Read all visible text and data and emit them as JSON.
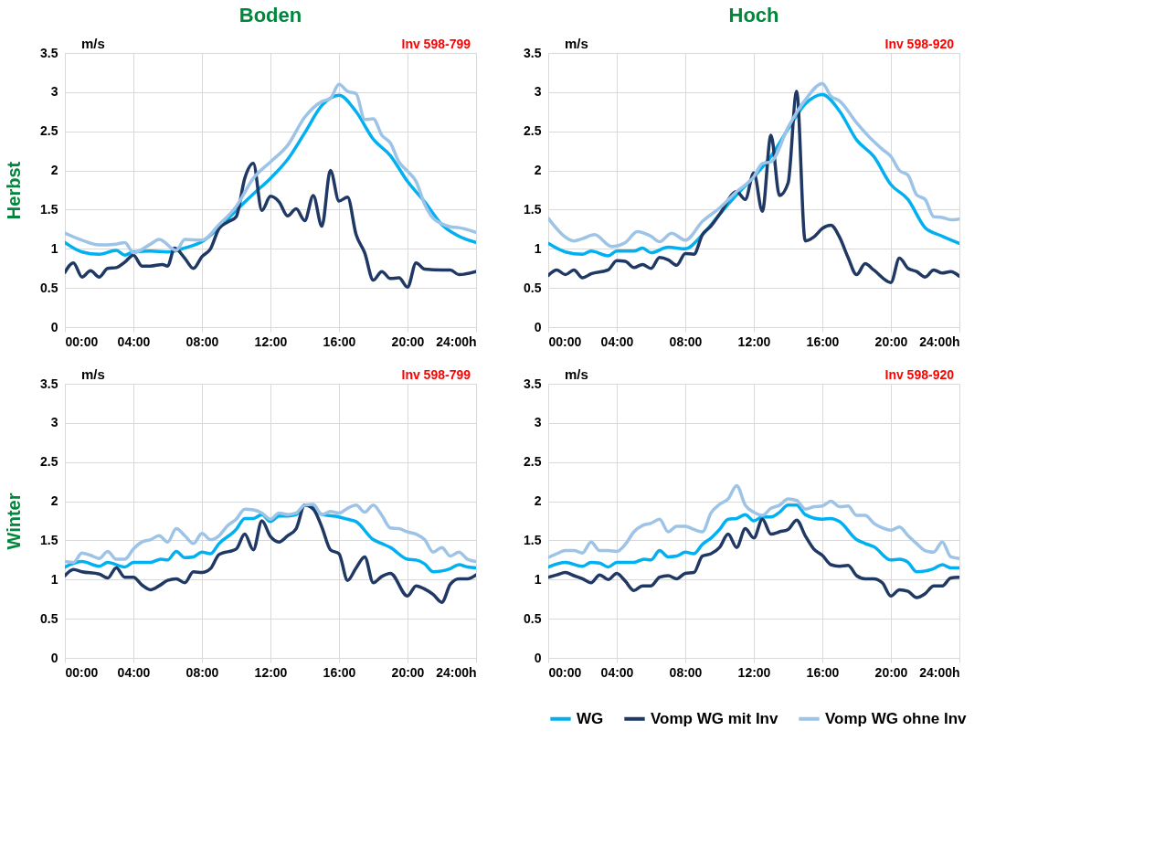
{
  "chart_data": [
    {
      "type": "line",
      "title": "Boden",
      "ylabel": "Herbst",
      "annotations": [
        "m/s",
        "Inv 598-799"
      ],
      "xlim": [
        0,
        24
      ],
      "ylim": [
        0,
        3.5
      ],
      "grid": true,
      "xticks": [
        {
          "value": 0,
          "label": "00:00"
        },
        {
          "value": 4,
          "label": "04:00"
        },
        {
          "value": 8,
          "label": "08:00"
        },
        {
          "value": 12,
          "label": "12:00"
        },
        {
          "value": 16,
          "label": "16:00"
        },
        {
          "value": 20,
          "label": "20:00"
        },
        {
          "value": 24,
          "label": "24:00h"
        }
      ],
      "yticks": [
        0,
        0.5,
        1,
        1.5,
        2,
        2.5,
        3,
        3.5
      ],
      "series": [
        {
          "color": "#00b0f0",
          "x": [
            0,
            1,
            2,
            3,
            3.5,
            4,
            5,
            6,
            7,
            8,
            9,
            10,
            11,
            12,
            13,
            14,
            15,
            16,
            17,
            18,
            19,
            20,
            21,
            22,
            23,
            24
          ],
          "values": [
            1.08,
            0.96,
            0.93,
            0.98,
            0.92,
            0.96,
            0.97,
            0.96,
            1.01,
            1.09,
            1.27,
            1.49,
            1.7,
            1.9,
            2.14,
            2.48,
            2.83,
            2.96,
            2.75,
            2.4,
            2.19,
            1.86,
            1.6,
            1.31,
            1.16,
            1.08
          ]
        },
        {
          "color": "#1f3864",
          "x": [
            0,
            0.5,
            1,
            1.5,
            2,
            2.5,
            3,
            3.5,
            4,
            4.5,
            5,
            5.7,
            6,
            6.4,
            7,
            7.5,
            8,
            8.5,
            9,
            9.5,
            10,
            10.5,
            11,
            11.5,
            12,
            12.5,
            13,
            13.5,
            14,
            14.5,
            15,
            15.5,
            16,
            16.5,
            17,
            17.5,
            18,
            18.5,
            19,
            19.5,
            20,
            20.5,
            21,
            22,
            22.5,
            23,
            24
          ],
          "values": [
            0.7,
            0.82,
            0.64,
            0.72,
            0.64,
            0.75,
            0.76,
            0.83,
            0.92,
            0.78,
            0.78,
            0.8,
            0.78,
            1.01,
            0.88,
            0.75,
            0.9,
            1.0,
            1.26,
            1.34,
            1.41,
            1.9,
            2.09,
            1.49,
            1.67,
            1.6,
            1.42,
            1.51,
            1.36,
            1.68,
            1.29,
            2.0,
            1.61,
            1.66,
            1.18,
            0.95,
            0.6,
            0.71,
            0.62,
            0.63,
            0.51,
            0.82,
            0.74,
            0.73,
            0.73,
            0.67,
            0.71
          ]
        },
        {
          "color": "#9dc3e6",
          "x": [
            0,
            1,
            2,
            3,
            3.5,
            4,
            5,
            5.5,
            6.5,
            7,
            8,
            9,
            10,
            11,
            12,
            13,
            14,
            15,
            15.5,
            16,
            16.5,
            17,
            17.5,
            18,
            18.5,
            19,
            19.5,
            20,
            20.5,
            21,
            21.5,
            22,
            22.5,
            23,
            24
          ],
          "values": [
            1.2,
            1.11,
            1.05,
            1.06,
            1.08,
            0.95,
            1.06,
            1.12,
            0.98,
            1.12,
            1.11,
            1.31,
            1.54,
            1.9,
            2.11,
            2.32,
            2.68,
            2.88,
            2.92,
            3.1,
            3.01,
            2.98,
            2.65,
            2.66,
            2.45,
            2.35,
            2.11,
            1.99,
            1.86,
            1.57,
            1.39,
            1.32,
            1.28,
            1.27,
            1.21
          ]
        }
      ]
    },
    {
      "type": "line",
      "title": "Hoch",
      "annotations": [
        "m/s",
        "Inv 598-920"
      ],
      "xlim": [
        0,
        24
      ],
      "ylim": [
        0,
        3.5
      ],
      "grid": true,
      "xticks": [
        {
          "value": 0,
          "label": "00:00"
        },
        {
          "value": 4,
          "label": "04:00"
        },
        {
          "value": 8,
          "label": "08:00"
        },
        {
          "value": 12,
          "label": "12:00"
        },
        {
          "value": 16,
          "label": "16:00"
        },
        {
          "value": 20,
          "label": "20:00"
        },
        {
          "value": 24,
          "label": "24:00h"
        }
      ],
      "yticks": [
        0,
        0.5,
        1,
        1.5,
        2,
        2.5,
        3,
        3.5
      ],
      "series": [
        {
          "color": "#00b0f0",
          "x": [
            0,
            1,
            2,
            2.5,
            3.5,
            4,
            5,
            5.5,
            6,
            7,
            8,
            9,
            10,
            11,
            12,
            13,
            14,
            15,
            16,
            17,
            18,
            19,
            20,
            21,
            22,
            23,
            24
          ],
          "values": [
            1.07,
            0.96,
            0.93,
            0.97,
            0.91,
            0.97,
            0.97,
            1.01,
            0.95,
            1.02,
            1.0,
            1.18,
            1.44,
            1.69,
            1.92,
            2.18,
            2.53,
            2.85,
            2.97,
            2.76,
            2.39,
            2.18,
            1.82,
            1.63,
            1.27,
            1.16,
            1.07
          ]
        },
        {
          "color": "#1f3864",
          "x": [
            0,
            0.5,
            1,
            1.5,
            2,
            2.5,
            3.5,
            4,
            4.5,
            5,
            5.5,
            6,
            6.5,
            7,
            7.5,
            8,
            8.5,
            9,
            9.5,
            10,
            11,
            11.5,
            12,
            12.5,
            13,
            13.5,
            14,
            14.5,
            15,
            15.5,
            16,
            16.5,
            17,
            17.5,
            18,
            18.5,
            19,
            20,
            20.5,
            21,
            21.5,
            22,
            22.5,
            23,
            23.5,
            24
          ],
          "values": [
            0.66,
            0.73,
            0.67,
            0.73,
            0.63,
            0.68,
            0.73,
            0.85,
            0.84,
            0.76,
            0.8,
            0.75,
            0.89,
            0.86,
            0.79,
            0.94,
            0.93,
            1.18,
            1.29,
            1.44,
            1.73,
            1.63,
            1.97,
            1.48,
            2.45,
            1.68,
            1.84,
            3.01,
            1.1,
            1.15,
            1.26,
            1.3,
            1.15,
            0.89,
            0.67,
            0.81,
            0.73,
            0.57,
            0.88,
            0.75,
            0.71,
            0.64,
            0.73,
            0.69,
            0.71,
            0.65
          ]
        },
        {
          "color": "#9dc3e6",
          "x": [
            0,
            1,
            1.5,
            2,
            2.7,
            3.7,
            4.5,
            5.2,
            6,
            6.5,
            7.2,
            8,
            9,
            10,
            11,
            12,
            12.5,
            13,
            14,
            15,
            16,
            16.5,
            17,
            18,
            19,
            19.5,
            20,
            20.5,
            21,
            21.5,
            22,
            22.5,
            23,
            23.5,
            24
          ],
          "values": [
            1.39,
            1.15,
            1.1,
            1.13,
            1.18,
            1.03,
            1.08,
            1.22,
            1.16,
            1.09,
            1.2,
            1.11,
            1.35,
            1.52,
            1.73,
            1.92,
            2.09,
            2.11,
            2.55,
            2.9,
            3.11,
            2.95,
            2.89,
            2.61,
            2.37,
            2.27,
            2.18,
            2.0,
            1.94,
            1.69,
            1.63,
            1.41,
            1.4,
            1.37,
            1.38
          ]
        }
      ]
    },
    {
      "type": "line",
      "ylabel": "Winter",
      "annotations": [
        "m/s",
        "Inv 598-799"
      ],
      "xlim": [
        0,
        24
      ],
      "ylim": [
        0,
        3.5
      ],
      "grid": true,
      "xticks": [
        {
          "value": 0,
          "label": "00:00"
        },
        {
          "value": 4,
          "label": "04:00"
        },
        {
          "value": 8,
          "label": "08:00"
        },
        {
          "value": 12,
          "label": "12:00"
        },
        {
          "value": 16,
          "label": "16:00"
        },
        {
          "value": 20,
          "label": "20:00"
        },
        {
          "value": 24,
          "label": "24:00h"
        }
      ],
      "yticks": [
        0,
        0.5,
        1,
        1.5,
        2,
        2.5,
        3,
        3.5
      ],
      "series": [
        {
          "color": "#00b0f0",
          "x": [
            0,
            1,
            2,
            2.5,
            3.5,
            4,
            5,
            5.6,
            6,
            6.5,
            7,
            7.5,
            8,
            8.5,
            9,
            10,
            10.5,
            11,
            11.5,
            12,
            12.5,
            13,
            13.5,
            14,
            14.5,
            15,
            16,
            16.5,
            17,
            18,
            18.5,
            19,
            20,
            20.5,
            21,
            21.5,
            22,
            22.5,
            23,
            23.5,
            24
          ],
          "values": [
            1.16,
            1.23,
            1.17,
            1.22,
            1.16,
            1.22,
            1.22,
            1.26,
            1.25,
            1.36,
            1.28,
            1.29,
            1.35,
            1.33,
            1.46,
            1.64,
            1.78,
            1.78,
            1.83,
            1.74,
            1.81,
            1.81,
            1.83,
            1.95,
            1.93,
            1.83,
            1.8,
            1.77,
            1.74,
            1.51,
            1.46,
            1.41,
            1.26,
            1.25,
            1.2,
            1.1,
            1.11,
            1.14,
            1.19,
            1.16,
            1.15
          ]
        },
        {
          "color": "#1f3864",
          "x": [
            0,
            0.5,
            1,
            2,
            2.5,
            3,
            3.5,
            4,
            4.5,
            5,
            5.5,
            6,
            6.5,
            7,
            7.5,
            8,
            8.5,
            9,
            10,
            10.5,
            11,
            11.5,
            12,
            12.5,
            13,
            13.5,
            14,
            14.5,
            15,
            15.5,
            16,
            16.5,
            17,
            17.5,
            18,
            18.5,
            19,
            20,
            20.5,
            21,
            21.5,
            22,
            22.5,
            23,
            23.5,
            24
          ],
          "values": [
            1.05,
            1.13,
            1.1,
            1.07,
            1.02,
            1.15,
            1.03,
            1.03,
            0.93,
            0.87,
            0.92,
            0.99,
            1.01,
            0.96,
            1.1,
            1.09,
            1.14,
            1.32,
            1.39,
            1.58,
            1.38,
            1.75,
            1.55,
            1.48,
            1.56,
            1.65,
            1.95,
            1.9,
            1.67,
            1.38,
            1.33,
            0.99,
            1.15,
            1.29,
            0.96,
            1.04,
            1.08,
            0.79,
            0.92,
            0.88,
            0.81,
            0.71,
            0.94,
            1.01,
            1.01,
            1.06
          ]
        },
        {
          "color": "#9dc3e6",
          "x": [
            0,
            0.5,
            1,
            1.5,
            2,
            2.5,
            3,
            3.5,
            4,
            4.5,
            5,
            5.5,
            6,
            6.5,
            7,
            7.5,
            8,
            8.5,
            9,
            9.5,
            10,
            10.5,
            11,
            11.5,
            12,
            12.5,
            13,
            13.5,
            14,
            14.5,
            15,
            15.5,
            16,
            16.5,
            17,
            17.5,
            18,
            18.5,
            19,
            19.5,
            20,
            20.5,
            21,
            21.5,
            22,
            22.5,
            23,
            23.5,
            24
          ],
          "values": [
            1.23,
            1.22,
            1.34,
            1.31,
            1.27,
            1.36,
            1.26,
            1.26,
            1.39,
            1.48,
            1.51,
            1.56,
            1.48,
            1.65,
            1.56,
            1.46,
            1.59,
            1.51,
            1.56,
            1.69,
            1.77,
            1.9,
            1.89,
            1.85,
            1.77,
            1.85,
            1.83,
            1.85,
            1.95,
            1.96,
            1.83,
            1.87,
            1.85,
            1.91,
            1.95,
            1.86,
            1.95,
            1.82,
            1.66,
            1.65,
            1.61,
            1.58,
            1.51,
            1.35,
            1.41,
            1.3,
            1.35,
            1.26,
            1.23
          ]
        }
      ]
    },
    {
      "type": "line",
      "annotations": [
        "m/s",
        "Inv 598-920"
      ],
      "xlim": [
        0,
        24
      ],
      "ylim": [
        0,
        3.5
      ],
      "grid": true,
      "legend": "bottom",
      "xticks": [
        {
          "value": 0,
          "label": "00:00"
        },
        {
          "value": 4,
          "label": "04:00"
        },
        {
          "value": 8,
          "label": "08:00"
        },
        {
          "value": 12,
          "label": "12:00"
        },
        {
          "value": 16,
          "label": "16:00"
        },
        {
          "value": 20,
          "label": "20:00"
        },
        {
          "value": 24,
          "label": "24:00h"
        }
      ],
      "yticks": [
        0,
        0.5,
        1,
        1.5,
        2,
        2.5,
        3,
        3.5
      ],
      "series": [
        {
          "name": "WG",
          "color": "#00b0f0",
          "x": [
            0,
            1,
            2,
            2.5,
            3,
            3.5,
            4,
            5,
            5.6,
            6,
            6.5,
            7,
            7.5,
            8,
            8.5,
            9,
            9.5,
            10,
            10.5,
            11,
            11.5,
            12,
            12.5,
            13,
            13.5,
            14,
            14.5,
            15,
            16,
            16.5,
            17,
            18,
            18.5,
            19,
            20,
            20.5,
            21,
            21.5,
            22,
            22.5,
            23,
            23.5,
            24
          ],
          "values": [
            1.16,
            1.22,
            1.17,
            1.22,
            1.21,
            1.16,
            1.22,
            1.22,
            1.26,
            1.25,
            1.37,
            1.29,
            1.3,
            1.35,
            1.33,
            1.45,
            1.53,
            1.64,
            1.77,
            1.78,
            1.83,
            1.75,
            1.8,
            1.8,
            1.86,
            1.95,
            1.95,
            1.83,
            1.77,
            1.78,
            1.74,
            1.51,
            1.46,
            1.42,
            1.25,
            1.26,
            1.22,
            1.1,
            1.11,
            1.14,
            1.19,
            1.15,
            1.15
          ]
        },
        {
          "name": "Vomp WG mit Inv",
          "color": "#1f3864",
          "x": [
            0,
            0.5,
            1,
            1.5,
            2,
            2.5,
            3,
            3.5,
            4,
            4.5,
            5,
            5.5,
            6,
            6.5,
            7,
            7.5,
            8,
            8.5,
            9,
            9.5,
            10,
            10.5,
            11,
            11.5,
            12,
            12.5,
            13,
            13.5,
            14,
            14.5,
            15,
            15.5,
            16,
            16.5,
            17,
            17.5,
            18,
            18.5,
            19,
            19.5,
            20,
            20.5,
            21,
            21.5,
            22,
            22.5,
            23,
            23.5,
            24
          ],
          "values": [
            1.03,
            1.06,
            1.09,
            1.05,
            1.01,
            0.96,
            1.06,
            1.0,
            1.08,
            0.98,
            0.86,
            0.92,
            0.92,
            1.03,
            1.05,
            1.01,
            1.08,
            1.09,
            1.3,
            1.33,
            1.41,
            1.58,
            1.41,
            1.65,
            1.53,
            1.77,
            1.58,
            1.61,
            1.64,
            1.76,
            1.56,
            1.39,
            1.31,
            1.19,
            1.17,
            1.18,
            1.05,
            1.01,
            1.01,
            0.96,
            0.79,
            0.87,
            0.85,
            0.77,
            0.82,
            0.92,
            0.92,
            1.02,
            1.03
          ]
        },
        {
          "name": "Vomp WG ohne Inv",
          "color": "#9dc3e6",
          "x": [
            0,
            0.5,
            1,
            1.5,
            2,
            2.5,
            3,
            3.5,
            4,
            4.5,
            5,
            5.5,
            6,
            6.5,
            7,
            7.5,
            8,
            8.5,
            9,
            9.5,
            10,
            10.5,
            11,
            11.5,
            12,
            12.5,
            13,
            13.5,
            14,
            14.5,
            15,
            15.5,
            16,
            16.5,
            17,
            17.5,
            18,
            18.5,
            19,
            19.5,
            20,
            20.5,
            21,
            21.5,
            22,
            22.5,
            23,
            23.5,
            24
          ],
          "values": [
            1.28,
            1.33,
            1.37,
            1.37,
            1.34,
            1.48,
            1.37,
            1.37,
            1.36,
            1.45,
            1.61,
            1.69,
            1.72,
            1.77,
            1.61,
            1.68,
            1.68,
            1.64,
            1.61,
            1.85,
            1.96,
            2.03,
            2.2,
            1.95,
            1.86,
            1.82,
            1.91,
            1.95,
            2.03,
            2.01,
            1.9,
            1.93,
            1.94,
            2.0,
            1.93,
            1.94,
            1.82,
            1.82,
            1.72,
            1.66,
            1.63,
            1.67,
            1.56,
            1.46,
            1.37,
            1.35,
            1.48,
            1.29,
            1.27
          ]
        }
      ]
    }
  ]
}
